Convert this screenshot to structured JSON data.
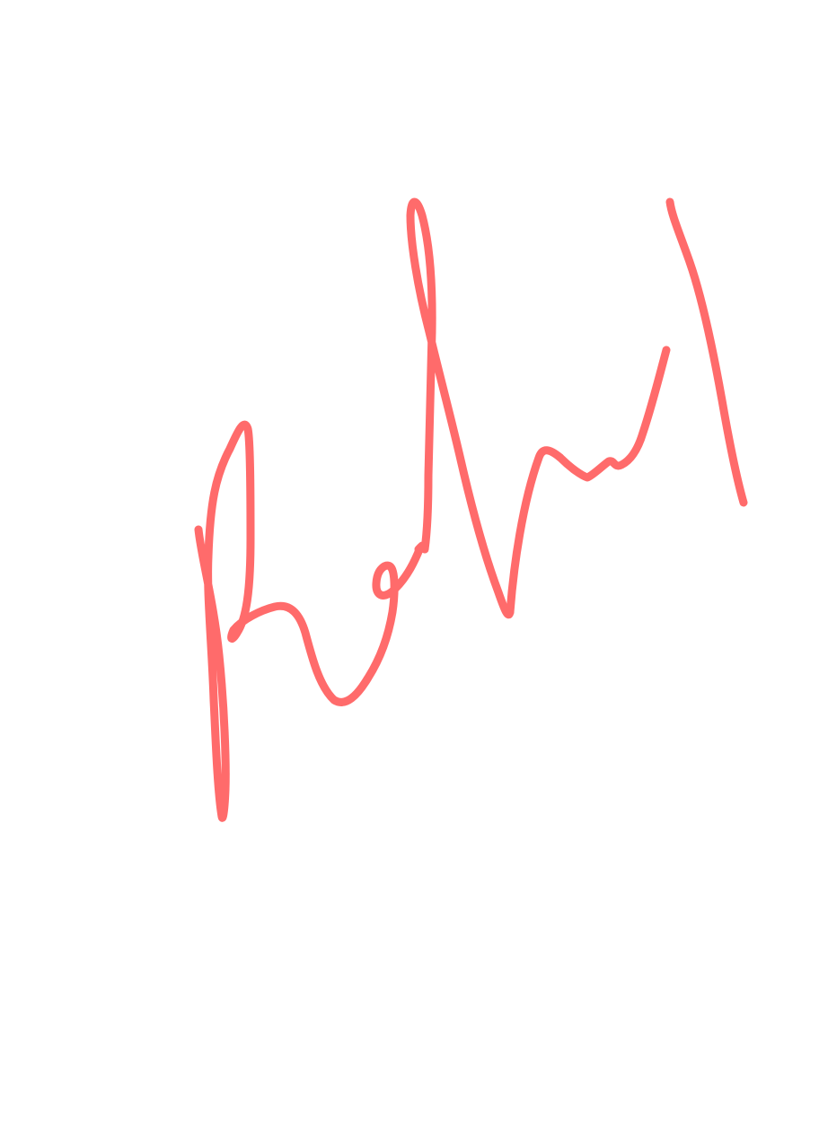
{
  "drawing": {
    "background_color": "#ffffff",
    "ink_color": "#ff6b6b",
    "description_hidden": "",
    "stroke_names": [
      "stroke-1",
      "stroke-2",
      "stroke-3",
      "stroke-4",
      "stroke-5"
    ]
  }
}
